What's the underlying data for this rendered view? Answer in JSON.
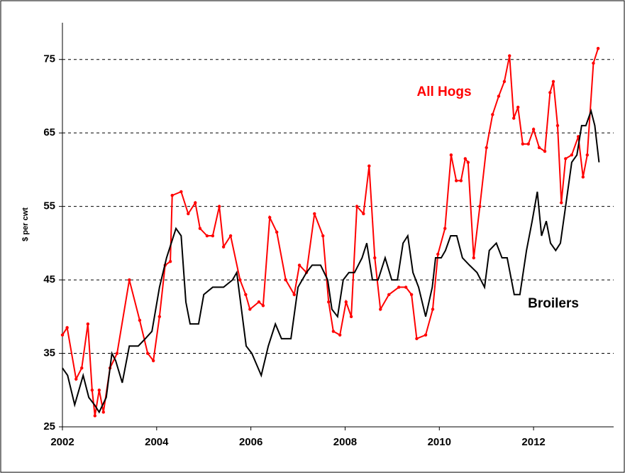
{
  "chart_data": {
    "type": "line",
    "y_label": "$ per cwt",
    "annotations": [
      "All Hogs",
      "Broilers"
    ],
    "xlim": [
      2002,
      2013.7
    ],
    "xticks": [
      2002,
      2004,
      2006,
      2008,
      2010,
      2012
    ],
    "ylim": [
      25,
      80
    ],
    "yticks": [
      25,
      35,
      45,
      55,
      65,
      75
    ],
    "grid": true,
    "series": [
      {
        "name": "All Hogs",
        "color": "#ff0000",
        "markers": true,
        "x": [
          2002.0,
          2002.1,
          2002.29,
          2002.41,
          2002.54,
          2002.63,
          2002.69,
          2002.78,
          2002.87,
          2003.01,
          2003.16,
          2003.42,
          2003.64,
          2003.81,
          2003.93,
          2004.06,
          2004.18,
          2004.29,
          2004.33,
          2004.52,
          2004.67,
          2004.82,
          2004.92,
          2005.07,
          2005.19,
          2005.33,
          2005.42,
          2005.57,
          2005.77,
          2005.89,
          2005.98,
          2006.17,
          2006.26,
          2006.4,
          2006.55,
          2006.74,
          2006.92,
          2007.03,
          2007.18,
          2007.35,
          2007.53,
          2007.65,
          2007.75,
          2007.89,
          2008.02,
          2008.13,
          2008.25,
          2008.39,
          2008.51,
          2008.63,
          2008.75,
          2008.93,
          2009.14,
          2009.29,
          2009.41,
          2009.52,
          2009.71,
          2009.86,
          2009.97,
          2010.12,
          2010.25,
          2010.36,
          2010.46,
          2010.55,
          2010.61,
          2010.73,
          2010.86,
          2011.0,
          2011.13,
          2011.26,
          2011.38,
          2011.49,
          2011.58,
          2011.67,
          2011.77,
          2011.89,
          2012.0,
          2012.12,
          2012.24,
          2012.35,
          2012.42,
          2012.51,
          2012.59,
          2012.68,
          2012.81,
          2012.95,
          2013.05,
          2013.14,
          2013.27,
          2013.37
        ],
        "values": [
          37.5,
          38.5,
          31.5,
          33,
          39,
          30,
          26.5,
          30,
          27,
          33,
          35,
          45,
          39.5,
          35,
          34,
          40,
          47,
          47.5,
          56.5,
          57,
          54,
          55.5,
          52,
          51,
          51,
          55,
          49.5,
          51,
          45,
          43,
          41,
          42,
          41.5,
          53.5,
          51.5,
          45,
          43,
          47,
          46,
          54,
          51,
          42,
          38,
          37.5,
          42,
          40,
          55,
          54,
          60.5,
          48,
          41,
          43,
          44,
          44,
          43,
          37,
          37.5,
          41,
          48.5,
          52,
          62,
          58.5,
          58.5,
          61.5,
          61,
          48,
          55,
          63,
          67.5,
          70,
          72,
          75.5,
          67,
          68.5,
          63.5,
          63.5,
          65.5,
          63,
          62.5,
          70.5,
          72,
          66,
          55.5,
          61.5,
          62,
          64.5,
          59,
          62,
          74.5,
          76.5
        ]
      },
      {
        "name": "Broilers",
        "color": "#000000",
        "markers": false,
        "x": [
          2002.0,
          2002.11,
          2002.26,
          2002.44,
          2002.56,
          2002.68,
          2002.78,
          2002.93,
          2003.05,
          2003.13,
          2003.27,
          2003.42,
          2003.61,
          2003.76,
          2003.9,
          2004.06,
          2004.21,
          2004.41,
          2004.52,
          2004.62,
          2004.71,
          2004.89,
          2005.0,
          2005.19,
          2005.42,
          2005.61,
          2005.7,
          2005.8,
          2005.9,
          2006.02,
          2006.22,
          2006.37,
          2006.52,
          2006.65,
          2006.85,
          2007.0,
          2007.18,
          2007.3,
          2007.48,
          2007.63,
          2007.72,
          2007.84,
          2007.96,
          2008.08,
          2008.2,
          2008.36,
          2008.46,
          2008.58,
          2008.7,
          2008.85,
          2008.99,
          2009.11,
          2009.23,
          2009.33,
          2009.44,
          2009.56,
          2009.71,
          2009.85,
          2009.92,
          2010.04,
          2010.13,
          2010.24,
          2010.37,
          2010.49,
          2010.64,
          2010.8,
          2010.96,
          2011.06,
          2011.21,
          2011.33,
          2011.44,
          2011.59,
          2011.71,
          2011.85,
          2011.97,
          2012.08,
          2012.17,
          2012.27,
          2012.36,
          2012.47,
          2012.57,
          2012.68,
          2012.81,
          2012.92,
          2013.02,
          2013.11,
          2013.22,
          2013.3,
          2013.39
        ],
        "values": [
          33,
          32,
          28,
          32,
          29,
          28,
          27,
          29,
          35,
          34,
          31,
          36,
          36,
          37,
          38,
          44,
          48,
          52,
          51,
          42,
          39,
          39,
          43,
          44,
          44,
          45,
          46,
          41,
          36,
          35,
          32,
          36,
          39,
          37,
          37,
          44,
          46,
          47,
          47,
          45,
          41,
          40,
          45,
          46,
          46,
          48,
          50,
          45,
          45,
          48,
          45,
          45,
          50,
          51,
          46,
          44,
          40,
          44,
          48,
          48,
          49,
          51,
          51,
          48,
          47,
          46,
          44,
          49,
          50,
          48,
          48,
          43,
          43,
          49,
          53,
          57,
          51,
          53,
          50,
          49,
          50,
          55,
          61,
          62,
          66,
          66,
          68,
          66,
          61
        ]
      }
    ]
  }
}
